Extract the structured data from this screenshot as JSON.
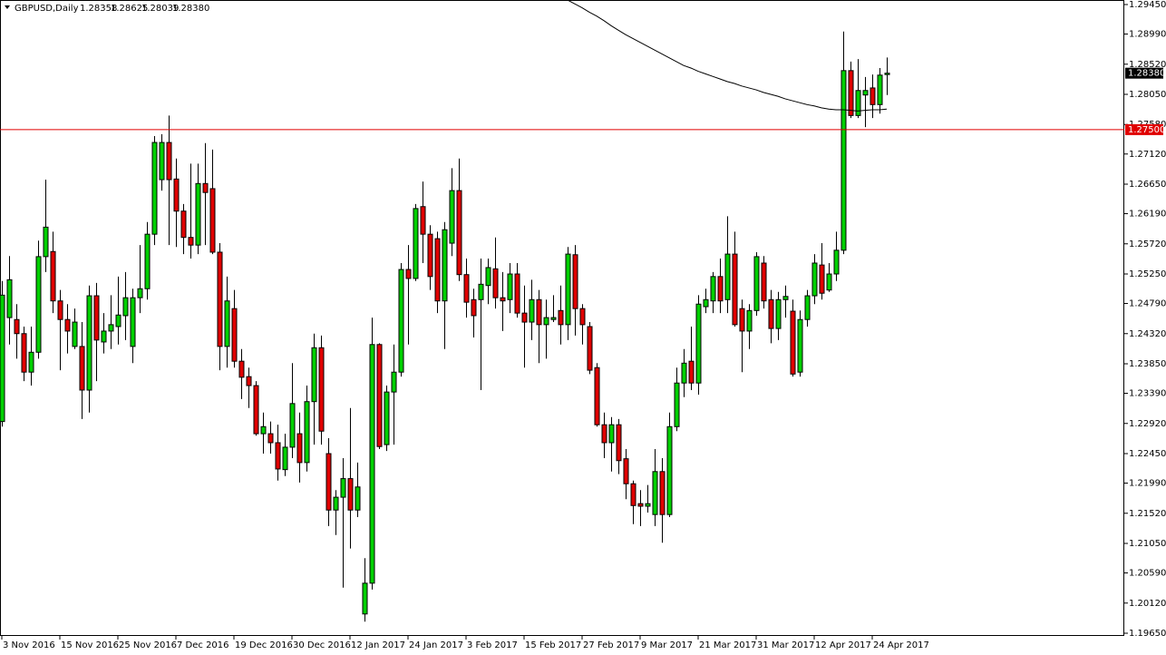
{
  "chart_data": {
    "type": "candlestick",
    "title": "GBPUSD,Daily",
    "up_color": "#00d000",
    "down_color": "#e00000",
    "outline_color": "#000000",
    "ma_color": "#000000",
    "ylim": [
      1.1965,
      1.2945
    ],
    "yticks": [
      {
        "value": 1.2945,
        "label": "1.29450"
      },
      {
        "value": 1.2899,
        "label": "1.28990"
      },
      {
        "value": 1.2852,
        "label": "1.28520"
      },
      {
        "value": 1.2805,
        "label": "1.28050"
      },
      {
        "value": 1.2758,
        "label": "1.27580"
      },
      {
        "value": 1.2712,
        "label": "1.27120"
      },
      {
        "value": 1.2665,
        "label": "1.26650"
      },
      {
        "value": 1.2619,
        "label": "1.26190"
      },
      {
        "value": 1.2572,
        "label": "1.25720"
      },
      {
        "value": 1.2525,
        "label": "1.25250"
      },
      {
        "value": 1.2479,
        "label": "1.24790"
      },
      {
        "value": 1.2432,
        "label": "1.24320"
      },
      {
        "value": 1.2385,
        "label": "1.23850"
      },
      {
        "value": 1.2339,
        "label": "1.23390"
      },
      {
        "value": 1.2292,
        "label": "1.22920"
      },
      {
        "value": 1.2245,
        "label": "1.22450"
      },
      {
        "value": 1.2199,
        "label": "1.21990"
      },
      {
        "value": 1.2152,
        "label": "1.21520"
      },
      {
        "value": 1.2105,
        "label": "1.21050"
      },
      {
        "value": 1.2059,
        "label": "1.20590"
      },
      {
        "value": 1.2012,
        "label": "1.20120"
      },
      {
        "value": 1.1965,
        "label": "1.19650"
      }
    ],
    "level": {
      "value": 1.275,
      "label": "1.27500",
      "color": "#e00000"
    },
    "last_price": {
      "value": 1.2838,
      "label": "1.28380"
    },
    "categories": [
      "3 Nov 2016",
      null,
      null,
      null,
      null,
      null,
      null,
      null,
      "15 Nov 2016",
      null,
      null,
      null,
      null,
      null,
      null,
      null,
      "25 Nov 2016",
      null,
      null,
      null,
      null,
      null,
      null,
      null,
      "7 Dec 2016",
      null,
      null,
      null,
      null,
      null,
      null,
      null,
      "19 Dec 2016",
      null,
      null,
      null,
      null,
      null,
      null,
      null,
      "30 Dec 2016",
      null,
      null,
      null,
      null,
      null,
      null,
      null,
      "12 Jan 2017",
      null,
      null,
      null,
      null,
      null,
      null,
      null,
      "24 Jan 2017",
      null,
      null,
      null,
      null,
      null,
      null,
      null,
      "3 Feb 2017",
      null,
      null,
      null,
      null,
      null,
      null,
      null,
      "15 Feb 2017",
      null,
      null,
      null,
      null,
      null,
      null,
      null,
      "27 Feb 2017",
      null,
      null,
      null,
      null,
      null,
      null,
      null,
      "9 Mar 2017",
      null,
      null,
      null,
      null,
      null,
      null,
      null,
      "21 Mar 2017",
      null,
      null,
      null,
      null,
      null,
      null,
      null,
      "31 Mar 2017",
      null,
      null,
      null,
      null,
      null,
      null,
      null,
      "12 Apr 2017",
      null,
      null,
      null,
      null,
      null,
      null,
      null,
      "24 Apr 2017",
      null,
      null
    ],
    "ohlc": [
      [
        1.2295,
        1.2514,
        1.2287,
        1.2492
      ],
      [
        1.2457,
        1.2553,
        1.2415,
        1.2516
      ],
      [
        1.2454,
        1.2478,
        1.2393,
        1.2432
      ],
      [
        1.2432,
        1.2443,
        1.2358,
        1.2372
      ],
      [
        1.2372,
        1.2443,
        1.2351,
        1.2403
      ],
      [
        1.2403,
        1.2577,
        1.2393,
        1.2552
      ],
      [
        1.2552,
        1.2672,
        1.2528,
        1.2598
      ],
      [
        1.256,
        1.2591,
        1.2464,
        1.2483
      ],
      [
        1.2483,
        1.25,
        1.2375,
        1.2454
      ],
      [
        1.2454,
        1.2478,
        1.2401,
        1.2436
      ],
      [
        1.2412,
        1.2471,
        1.2408,
        1.245
      ],
      [
        1.2412,
        1.245,
        1.2299,
        1.2344
      ],
      [
        1.2344,
        1.2507,
        1.2309,
        1.2491
      ],
      [
        1.2491,
        1.2511,
        1.2358,
        1.2422
      ],
      [
        1.2419,
        1.2464,
        1.2401,
        1.2436
      ],
      [
        1.2436,
        1.2492,
        1.2408,
        1.2446
      ],
      [
        1.2443,
        1.2521,
        1.2415,
        1.2461
      ],
      [
        1.246,
        1.2528,
        1.2422,
        1.2488
      ],
      [
        1.2412,
        1.2502,
        1.2386,
        1.2488
      ],
      [
        1.2488,
        1.257,
        1.2464,
        1.2502
      ],
      [
        1.2502,
        1.2606,
        1.2485,
        1.2587
      ],
      [
        1.2587,
        1.274,
        1.257,
        1.273
      ],
      [
        1.2672,
        1.2743,
        1.2655,
        1.273
      ],
      [
        1.273,
        1.2772,
        1.257,
        1.2672
      ],
      [
        1.2673,
        1.2705,
        1.2567,
        1.2623
      ],
      [
        1.2623,
        1.2634,
        1.2556,
        1.2582
      ],
      [
        1.2582,
        1.2697,
        1.2549,
        1.257
      ],
      [
        1.257,
        1.2697,
        1.2556,
        1.2666
      ],
      [
        1.2666,
        1.2729,
        1.257,
        1.2652
      ],
      [
        1.2658,
        1.2719,
        1.2556,
        1.2559
      ],
      [
        1.2559,
        1.2573,
        1.2375,
        1.2412
      ],
      [
        1.2412,
        1.2521,
        1.2379,
        1.2483
      ],
      [
        1.2471,
        1.25,
        1.2379,
        1.2389
      ],
      [
        1.2389,
        1.2408,
        1.233,
        1.2364
      ],
      [
        1.2365,
        1.2379,
        1.2316,
        1.2351
      ],
      [
        1.2351,
        1.2358,
        1.2273,
        1.2276
      ],
      [
        1.2276,
        1.2309,
        1.2245,
        1.2287
      ],
      [
        1.2276,
        1.2295,
        1.2245,
        1.2262
      ],
      [
        1.2262,
        1.229,
        1.2203,
        1.2221
      ],
      [
        1.222,
        1.2276,
        1.221,
        1.2255
      ],
      [
        1.2255,
        1.2386,
        1.2238,
        1.2323
      ],
      [
        1.2276,
        1.2309,
        1.22,
        1.2231
      ],
      [
        1.2231,
        1.2351,
        1.2217,
        1.2326
      ],
      [
        1.2326,
        1.2432,
        1.2259,
        1.241
      ],
      [
        1.241,
        1.2429,
        1.2259,
        1.228
      ],
      [
        1.2245,
        1.2269,
        1.2132,
        1.2157
      ],
      [
        1.2157,
        1.2188,
        1.2118,
        1.2177
      ],
      [
        1.2177,
        1.2238,
        1.2036,
        1.2206
      ],
      [
        1.2206,
        1.2316,
        1.2097,
        1.2157
      ],
      [
        1.2157,
        1.2231,
        1.2146,
        1.2193
      ],
      [
        1.1995,
        1.2082,
        1.1983,
        1.2043
      ],
      [
        1.2043,
        1.2457,
        1.2033,
        1.2415
      ],
      [
        1.2415,
        1.2417,
        1.2252,
        1.2256
      ],
      [
        1.2259,
        1.2351,
        1.2249,
        1.2341
      ],
      [
        1.2341,
        1.2415,
        1.2259,
        1.2372
      ],
      [
        1.2372,
        1.2542,
        1.2365,
        1.2532
      ],
      [
        1.2532,
        1.257,
        1.2415,
        1.2518
      ],
      [
        1.2518,
        1.2634,
        1.2514,
        1.2627
      ],
      [
        1.263,
        1.2669,
        1.2542,
        1.2587
      ],
      [
        1.2587,
        1.2601,
        1.25,
        1.2521
      ],
      [
        1.258,
        1.2591,
        1.2464,
        1.2483
      ],
      [
        1.2483,
        1.2606,
        1.2408,
        1.2594
      ],
      [
        1.2573,
        1.269,
        1.2553,
        1.2655
      ],
      [
        1.2655,
        1.2705,
        1.2514,
        1.2524
      ],
      [
        1.2524,
        1.2549,
        1.2457,
        1.2481
      ],
      [
        1.2485,
        1.2502,
        1.2426,
        1.246
      ],
      [
        1.2485,
        1.2549,
        1.2344,
        1.2509
      ],
      [
        1.2507,
        1.2549,
        1.2478,
        1.2535
      ],
      [
        1.2533,
        1.2582,
        1.2471,
        1.2488
      ],
      [
        1.2488,
        1.2528,
        1.2436,
        1.2483
      ],
      [
        1.2485,
        1.2542,
        1.2464,
        1.2525
      ],
      [
        1.2525,
        1.2542,
        1.2457,
        1.2464
      ],
      [
        1.2464,
        1.2507,
        1.2379,
        1.245
      ],
      [
        1.245,
        1.2516,
        1.2422,
        1.2485
      ],
      [
        1.2485,
        1.25,
        1.2386,
        1.2446
      ],
      [
        1.2446,
        1.2485,
        1.2393,
        1.2457
      ],
      [
        1.2454,
        1.2492,
        1.245,
        1.2457
      ],
      [
        1.2468,
        1.2507,
        1.2415,
        1.2446
      ],
      [
        1.2446,
        1.2567,
        1.2422,
        1.2556
      ],
      [
        1.2555,
        1.257,
        1.2429,
        1.2471
      ],
      [
        1.2471,
        1.2478,
        1.2415,
        1.2446
      ],
      [
        1.2443,
        1.245,
        1.2369,
        1.2375
      ],
      [
        1.2379,
        1.2386,
        1.2287,
        1.229
      ],
      [
        1.229,
        1.2309,
        1.2238,
        1.2262
      ],
      [
        1.2262,
        1.2302,
        1.2217,
        1.229
      ],
      [
        1.229,
        1.2299,
        1.2213,
        1.2234
      ],
      [
        1.2237,
        1.2252,
        1.2174,
        1.2198
      ],
      [
        1.2198,
        1.2203,
        1.2135,
        1.2164
      ],
      [
        1.2167,
        1.2188,
        1.2132,
        1.2163
      ],
      [
        1.2163,
        1.2196,
        1.2153,
        1.2167
      ],
      [
        1.215,
        1.2252,
        1.2132,
        1.2217
      ],
      [
        1.2217,
        1.2238,
        1.2106,
        1.215
      ],
      [
        1.215,
        1.2309,
        1.2146,
        1.2287
      ],
      [
        1.2287,
        1.2379,
        1.228,
        1.2355
      ],
      [
        1.2355,
        1.2408,
        1.2333,
        1.2386
      ],
      [
        1.2389,
        1.2443,
        1.2344,
        1.2355
      ],
      [
        1.2355,
        1.2492,
        1.2337,
        1.2478
      ],
      [
        1.2474,
        1.2502,
        1.2464,
        1.2485
      ],
      [
        1.2483,
        1.2528,
        1.2464,
        1.2521
      ],
      [
        1.2521,
        1.2549,
        1.2464,
        1.2483
      ],
      [
        1.2485,
        1.2615,
        1.2464,
        1.2556
      ],
      [
        1.2556,
        1.2591,
        1.2443,
        1.2446
      ],
      [
        1.2471,
        1.2485,
        1.2372,
        1.2436
      ],
      [
        1.2436,
        1.2478,
        1.2408,
        1.2468
      ],
      [
        1.2468,
        1.2559,
        1.246,
        1.2552
      ],
      [
        1.2542,
        1.2553,
        1.2471,
        1.2483
      ],
      [
        1.2485,
        1.25,
        1.2417,
        1.244
      ],
      [
        1.244,
        1.2497,
        1.2422,
        1.2485
      ],
      [
        1.2485,
        1.2507,
        1.2457,
        1.249
      ],
      [
        1.2467,
        1.2485,
        1.2365,
        1.2369
      ],
      [
        1.2372,
        1.2468,
        1.2365,
        1.2454
      ],
      [
        1.2454,
        1.25,
        1.2443,
        1.2491
      ],
      [
        1.2491,
        1.2556,
        1.2478,
        1.2542
      ],
      [
        1.2539,
        1.2573,
        1.2485,
        1.2495
      ],
      [
        1.25,
        1.2542,
        1.2497,
        1.2525
      ],
      [
        1.2525,
        1.2591,
        1.2514,
        1.2562
      ],
      [
        1.2562,
        1.2903,
        1.2556,
        1.2842
      ],
      [
        1.2842,
        1.2856,
        1.2768,
        1.2772
      ],
      [
        1.2772,
        1.286,
        1.2768,
        1.2811
      ],
      [
        1.2804,
        1.2832,
        1.2754,
        1.2811
      ],
      [
        1.2815,
        1.2836,
        1.2768,
        1.2789
      ],
      [
        1.2789,
        1.2846,
        1.2775,
        1.2835
      ],
      [
        1.28358,
        1.28625,
        1.28039,
        1.2838
      ]
    ],
    "ma_values": [
      null,
      null,
      null,
      null,
      null,
      null,
      null,
      null,
      null,
      null,
      null,
      null,
      null,
      null,
      null,
      null,
      null,
      null,
      null,
      null,
      null,
      null,
      null,
      null,
      null,
      null,
      null,
      null,
      null,
      null,
      null,
      null,
      null,
      null,
      null,
      null,
      null,
      null,
      null,
      null,
      null,
      null,
      null,
      null,
      null,
      null,
      null,
      null,
      null,
      null,
      null,
      null,
      null,
      null,
      null,
      null,
      null,
      null,
      null,
      null,
      null,
      null,
      null,
      null,
      null,
      null,
      null,
      null,
      null,
      null,
      null,
      null,
      null,
      null,
      null,
      null,
      null,
      null,
      1.2952,
      1.2946,
      1.294,
      1.2933,
      1.2927,
      1.292,
      1.2912,
      1.2905,
      1.2898,
      1.2892,
      1.2886,
      1.288,
      1.2874,
      1.2868,
      1.2862,
      1.2856,
      1.285,
      1.2846,
      1.2841,
      1.2837,
      1.2833,
      1.2829,
      1.2825,
      1.2822,
      1.2818,
      1.2815,
      1.2812,
      1.2808,
      1.2805,
      1.2802,
      1.2798,
      1.2795,
      1.2792,
      1.2789,
      1.2787,
      1.2784,
      1.2782,
      1.2781,
      1.2781,
      1.278,
      1.2779,
      1.278,
      1.2781,
      1.2781,
      1.2782
    ]
  }
}
